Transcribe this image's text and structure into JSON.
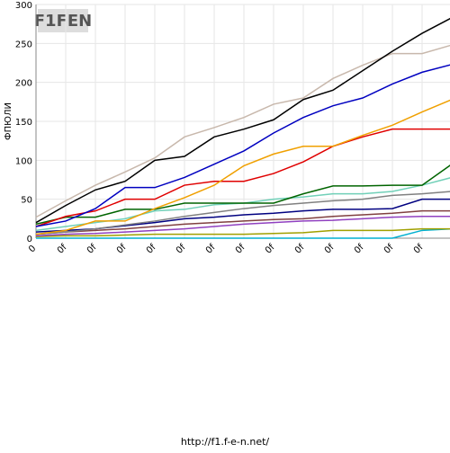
{
  "logo": "F1FEN",
  "footer": "http://f1.f-e-n.net/",
  "chart_data": {
    "type": "line",
    "y_label": "ФПЮЛИ",
    "categories": [
      "0",
      "0f",
      "0f",
      "0f",
      "0f",
      "0f",
      "0f",
      "0f",
      "0f",
      "0f",
      "0f",
      "0f",
      "0f",
      "0f",
      null
    ],
    "ylim": [
      0,
      300
    ],
    "yticks": [
      0,
      50,
      100,
      150,
      200,
      250,
      300
    ],
    "grid": true,
    "series": [
      {
        "name": null,
        "color": "#000000",
        "values": [
          20,
          42,
          62,
          73,
          100,
          105,
          130,
          140,
          152,
          178,
          190,
          215,
          240,
          263,
          283
        ]
      },
      {
        "name": null,
        "color": "#c8b8ac",
        "values": [
          27,
          48,
          68,
          85,
          103,
          130,
          142,
          155,
          172,
          180,
          205,
          222,
          237,
          237,
          248
        ]
      },
      {
        "name": null,
        "color": "#0000c0",
        "values": [
          15,
          22,
          38,
          65,
          65,
          78,
          95,
          112,
          135,
          155,
          170,
          180,
          198,
          213,
          223
        ]
      },
      {
        "name": null,
        "color": "#f0a000",
        "values": [
          5,
          10,
          22,
          22,
          38,
          52,
          68,
          93,
          108,
          118,
          118,
          132,
          145,
          162,
          178
        ]
      },
      {
        "name": null,
        "color": "#e00000",
        "values": [
          15,
          28,
          35,
          50,
          50,
          68,
          73,
          73,
          83,
          98,
          118,
          130,
          140,
          140,
          140
        ]
      },
      {
        "name": null,
        "color": "#006400",
        "values": [
          18,
          27,
          27,
          37,
          37,
          45,
          45,
          45,
          45,
          57,
          67,
          67,
          68,
          68,
          95
        ]
      },
      {
        "name": null,
        "color": "#70d0b8",
        "values": [
          10,
          15,
          20,
          25,
          35,
          37,
          43,
          45,
          50,
          53,
          57,
          57,
          60,
          68,
          78
        ]
      },
      {
        "name": null,
        "color": "#808080",
        "values": [
          5,
          8,
          12,
          17,
          22,
          28,
          33,
          38,
          42,
          45,
          48,
          50,
          55,
          57,
          60
        ]
      },
      {
        "name": null,
        "color": "#000080",
        "values": [
          8,
          10,
          12,
          16,
          20,
          25,
          27,
          30,
          32,
          35,
          37,
          37,
          38,
          50,
          50
        ]
      },
      {
        "name": null,
        "color": "#9040c0",
        "values": [
          3,
          5,
          6,
          8,
          10,
          12,
          15,
          18,
          20,
          22,
          23,
          25,
          27,
          28,
          28
        ]
      },
      {
        "name": null,
        "color": "#804040",
        "values": [
          5,
          8,
          10,
          12,
          15,
          18,
          20,
          22,
          24,
          25,
          28,
          30,
          32,
          35,
          35
        ]
      },
      {
        "name": null,
        "color": "#a0a000",
        "values": [
          2,
          3,
          3,
          4,
          5,
          5,
          5,
          5,
          6,
          7,
          10,
          10,
          10,
          12,
          12
        ]
      },
      {
        "name": null,
        "color": "#00b0d0",
        "values": [
          0,
          0,
          0,
          0,
          0,
          0,
          0,
          0,
          0,
          0,
          0,
          0,
          0,
          10,
          12
        ]
      }
    ]
  }
}
